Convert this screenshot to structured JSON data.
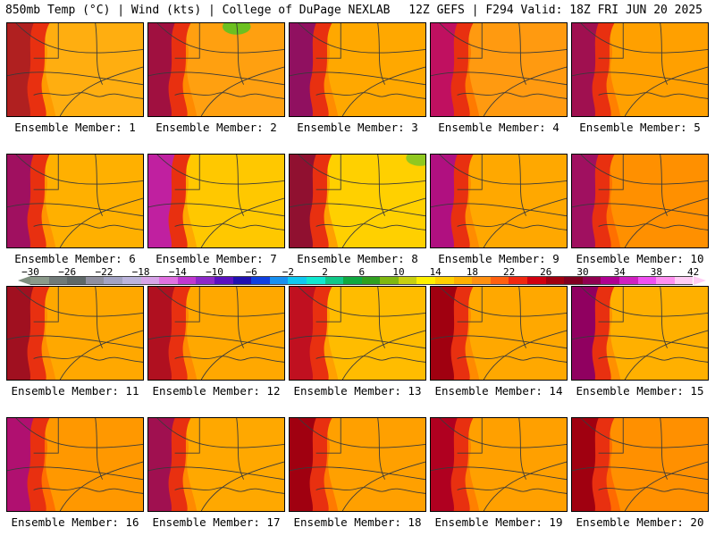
{
  "header": {
    "left": "850mb Temp (°C) | Wind (kts) | College of DuPage NEXLAB",
    "right": "12Z GEFS | F294 Valid: 18Z FRI JUN 20 2025"
  },
  "colorbar": {
    "tick_labels": [
      "−30",
      "−26",
      "−22",
      "−18",
      "−14",
      "−10",
      "−6",
      "−2",
      "2",
      "6",
      "10",
      "14",
      "18",
      "22",
      "26",
      "30",
      "34",
      "38",
      "42"
    ],
    "colors": [
      "#8a9a8a",
      "#707a78",
      "#5e6868",
      "#8f8f9f",
      "#a3a3c3",
      "#bcb4dc",
      "#d7a4e8",
      "#e070e0",
      "#c038d0",
      "#8c28c8",
      "#5a10c0",
      "#2010b0",
      "#1040e0",
      "#1890f0",
      "#10c8f0",
      "#10e8d0",
      "#10c888",
      "#10a840",
      "#30a020",
      "#80b810",
      "#c8d010",
      "#fff000",
      "#ffd000",
      "#ffb000",
      "#ff9010",
      "#ff6010",
      "#f02810",
      "#d00010",
      "#a00010",
      "#800020",
      "#900050",
      "#b00090",
      "#d020c0",
      "#f050f0",
      "#ff90f0",
      "#ffcdf5"
    ]
  },
  "members": [
    {
      "caption": "Ensemble Member: 1",
      "west": "#b02020",
      "warm": "#ff9a00",
      "mid": "#ffae10",
      "hot_spot": ""
    },
    {
      "caption": "Ensemble Member: 2",
      "west": "#a01040",
      "warm": "#ff8a00",
      "mid": "#ffa010",
      "hot_spot": "#6cc020"
    },
    {
      "caption": "Ensemble Member: 3",
      "west": "#901060",
      "warm": "#ff8c00",
      "mid": "#ffa800",
      "hot_spot": ""
    },
    {
      "caption": "Ensemble Member: 4",
      "west": "#c01060",
      "warm": "#ff7a00",
      "mid": "#ff9a10",
      "hot_spot": ""
    },
    {
      "caption": "Ensemble Member: 5",
      "west": "#a01050",
      "warm": "#ff8000",
      "mid": "#ffa000",
      "hot_spot": ""
    },
    {
      "caption": "Ensemble Member: 6",
      "west": "#a01060",
      "warm": "#ff9400",
      "mid": "#ffb000",
      "hot_spot": ""
    },
    {
      "caption": "Ensemble Member: 7",
      "west": "#c020a0",
      "warm": "#ffa800",
      "mid": "#ffc800",
      "hot_spot": ""
    },
    {
      "caption": "Ensemble Member: 8",
      "west": "#901030",
      "warm": "#ffa000",
      "mid": "#ffd000",
      "hot_spot": "#90c820"
    },
    {
      "caption": "Ensemble Member: 9",
      "west": "#b01080",
      "warm": "#ff8c00",
      "mid": "#ffa800",
      "hot_spot": ""
    },
    {
      "caption": "Ensemble Member: 10",
      "west": "#a01060",
      "warm": "#ff7000",
      "mid": "#ff9000",
      "hot_spot": ""
    },
    {
      "caption": "Ensemble Member: 11",
      "west": "#a01020",
      "warm": "#ff9000",
      "mid": "#ffa800",
      "hot_spot": ""
    },
    {
      "caption": "Ensemble Member: 12",
      "west": "#b01020",
      "warm": "#ff8a00",
      "mid": "#ffa800",
      "hot_spot": ""
    },
    {
      "caption": "Ensemble Member: 13",
      "west": "#c01020",
      "warm": "#ffa000",
      "mid": "#ffbc00",
      "hot_spot": ""
    },
    {
      "caption": "Ensemble Member: 14",
      "west": "#a00010",
      "warm": "#ff8a00",
      "mid": "#ffa800",
      "hot_spot": ""
    },
    {
      "caption": "Ensemble Member: 15",
      "west": "#900060",
      "warm": "#ff9000",
      "mid": "#ffb000",
      "hot_spot": ""
    },
    {
      "caption": "Ensemble Member: 16",
      "west": "#b01070",
      "warm": "#ff7000",
      "mid": "#ff9800",
      "hot_spot": ""
    },
    {
      "caption": "Ensemble Member: 17",
      "west": "#a01050",
      "warm": "#ff8a00",
      "mid": "#ffa800",
      "hot_spot": ""
    },
    {
      "caption": "Ensemble Member: 18",
      "west": "#a00010",
      "warm": "#ff7a00",
      "mid": "#ffa000",
      "hot_spot": ""
    },
    {
      "caption": "Ensemble Member: 19",
      "west": "#b00020",
      "warm": "#ff8000",
      "mid": "#ffa000",
      "hot_spot": ""
    },
    {
      "caption": "Ensemble Member: 20",
      "west": "#a00010",
      "warm": "#ff6a00",
      "mid": "#ff9000",
      "hot_spot": ""
    }
  ]
}
